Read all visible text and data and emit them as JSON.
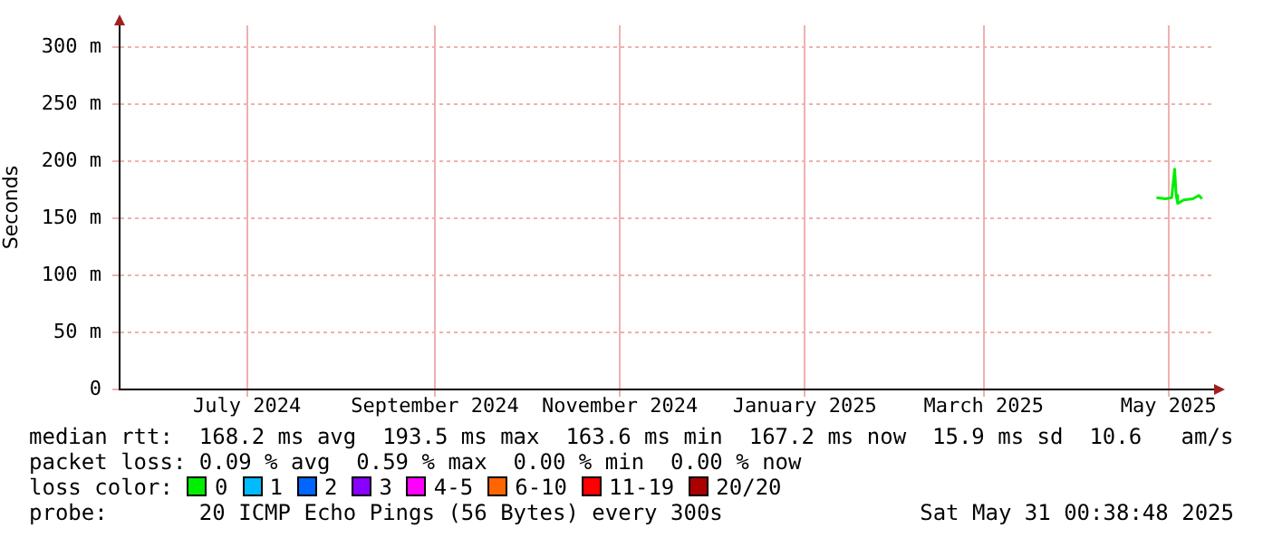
{
  "chart_data": {
    "type": "line",
    "ylabel": "Seconds",
    "xlim": [
      "2024-05-20",
      "2025-05-16"
    ],
    "xticks": [
      {
        "value": "2024-07-01",
        "label": "July 2024"
      },
      {
        "value": "2024-09-01",
        "label": "September 2024"
      },
      {
        "value": "2024-11-01",
        "label": "November 2024"
      },
      {
        "value": "2025-01-01",
        "label": "January 2025"
      },
      {
        "value": "2025-03-01",
        "label": "March 2025"
      },
      {
        "value": "2025-05-01",
        "label": "May 2025"
      }
    ],
    "ylim": [
      0,
      319
    ],
    "yticks": [
      0,
      {
        "value": 50,
        "label": "50 m"
      },
      {
        "value": 100,
        "label": "100 m"
      },
      {
        "value": 150,
        "label": "150 m"
      },
      {
        "value": 200,
        "label": "200 m"
      },
      {
        "value": 250,
        "label": "250 m"
      },
      {
        "value": 300,
        "label": "300 m"
      }
    ],
    "grid": true,
    "legend": false,
    "marker": "none",
    "line_style": "solid",
    "series": [
      {
        "color": "#00ee00",
        "x": [
          "2025-04-27",
          "2025-04-30",
          "2025-05-02",
          "2025-05-03",
          "2025-05-03T12:00",
          "2025-05-04",
          "2025-05-06",
          "2025-05-09",
          "2025-05-11",
          "2025-05-12"
        ],
        "values": [
          168,
          167,
          168,
          193,
          170,
          163,
          166,
          167,
          170,
          167
        ]
      }
    ],
    "annotations": [
      "median rtt:  168.2 ms avg  193.5 ms max  163.6 ms min  167.2 ms now  15.9 ms sd  10.6   am/s",
      "packet loss: 0.09 % avg  0.59 % max  0.00 % min  0.00 % now",
      "loss color:",
      "0",
      "1",
      "2",
      "3",
      "4-5",
      "6-10",
      "11-19",
      "20/20",
      "probe:       20 ICMP Echo Pings (56 Bytes) every 300s",
      "Sat May 31 00:38:48 2025"
    ]
  }
}
